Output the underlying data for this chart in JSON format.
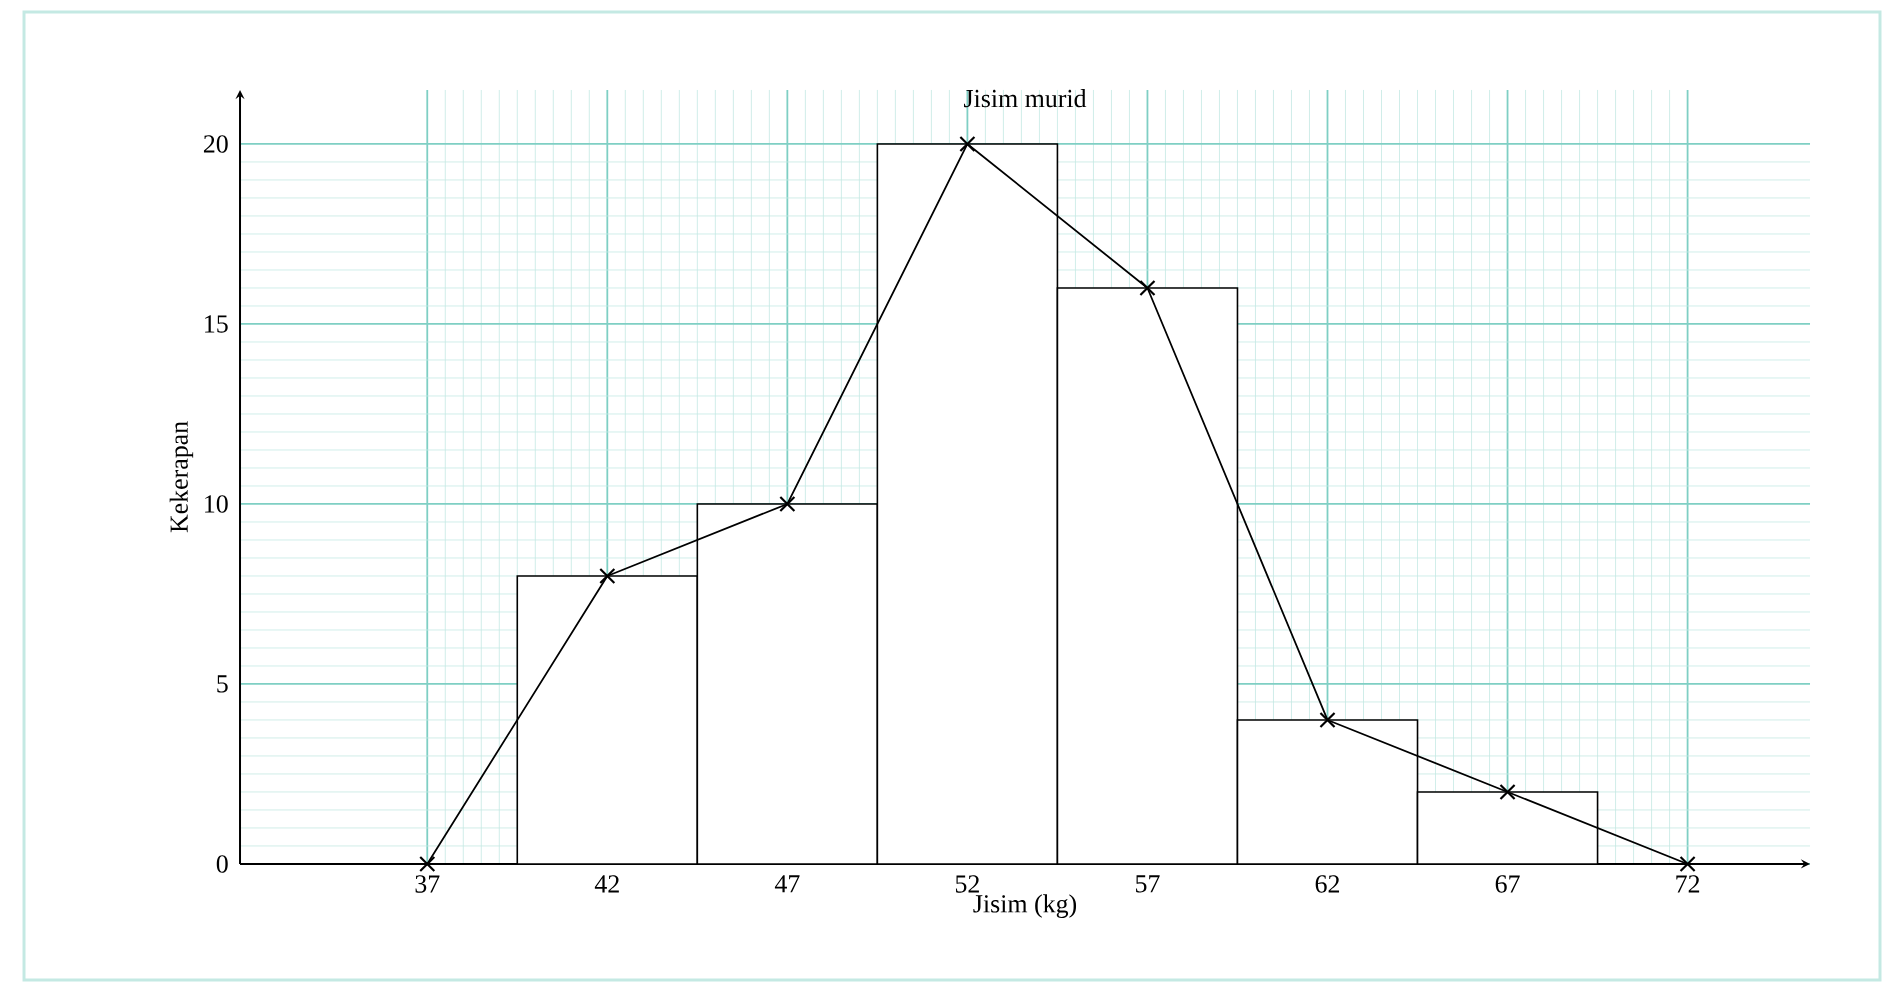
{
  "chart_data": {
    "type": "histogram",
    "title": "Jisim murid",
    "xlabel": "Jisim (kg)",
    "ylabel": "Kekerapan",
    "xlim": [
      31.8,
      75.4
    ],
    "ylim": [
      0,
      21.5
    ],
    "xticks": [
      37,
      42,
      47,
      52,
      57,
      62,
      67,
      72
    ],
    "yticks": [
      0,
      5,
      10,
      15,
      20
    ],
    "grid": true,
    "series": [
      {
        "type": "histogram",
        "bins": [
          39.5,
          44.5,
          49.5,
          54.5,
          59.5,
          64.5,
          69.5
        ],
        "values": [
          8,
          10,
          20,
          16,
          4,
          2
        ],
        "color": "#000000"
      },
      {
        "type": "line",
        "x": [
          37,
          42,
          47,
          52,
          57,
          62,
          67,
          72
        ],
        "values": [
          0,
          8,
          10,
          20,
          16,
          4,
          2,
          0
        ],
        "color": "#000000",
        "marker": "cross"
      }
    ]
  }
}
